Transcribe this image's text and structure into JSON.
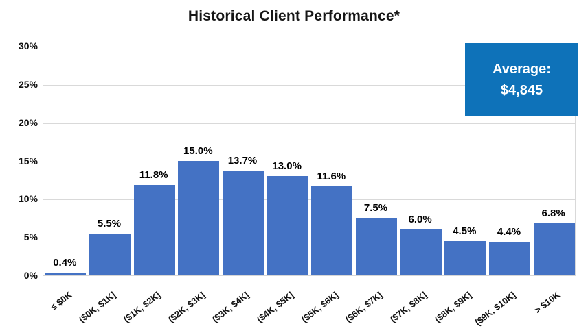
{
  "title": "Historical Client Performance*",
  "average_callout": {
    "label": "Average:",
    "value": "$4,845",
    "bg_color": "#0e72b9",
    "text_color": "#ffffff"
  },
  "colors": {
    "bar": "#4472c4",
    "gridline": "#d9d9d9",
    "label_text": "#000000"
  },
  "chart_data": {
    "type": "bar",
    "title": "Historical Client Performance*",
    "categories": [
      "≤ $0K",
      "($0K, $1K]",
      "($1K, $2K]",
      "($2K, $3K]",
      "($3K, $4K]",
      "($4K, $5K]",
      "($5K, $6K]",
      "($6K, $7K]",
      "($7K, $8K]",
      "($8K, $9K]",
      "($9K, $10K]",
      "> $10K"
    ],
    "values": [
      0.4,
      5.5,
      11.8,
      15.0,
      13.7,
      13.0,
      11.6,
      7.5,
      6.0,
      4.5,
      4.4,
      6.8
    ],
    "value_labels": [
      "0.4%",
      "5.5%",
      "11.8%",
      "15.0%",
      "13.7%",
      "13.0%",
      "11.6%",
      "7.5%",
      "6.0%",
      "4.5%",
      "4.4%",
      "6.8%"
    ],
    "xlabel": "",
    "ylabel": "",
    "ylim": [
      0,
      30
    ],
    "ytick_step": 5,
    "ytick_labels": [
      "0%",
      "5%",
      "10%",
      "15%",
      "20%",
      "25%",
      "30%"
    ],
    "grid": true,
    "legend_position": "none",
    "bar_color": "#4472c4",
    "annotation": "Average: $4,845"
  }
}
